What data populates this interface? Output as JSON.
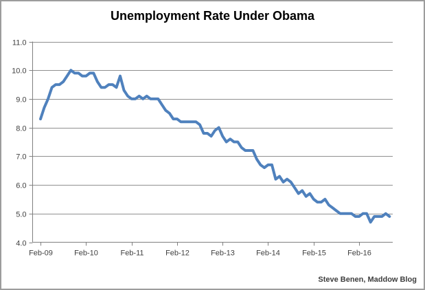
{
  "header": {
    "title": "Unemployment Rate Under Obama"
  },
  "footer": {
    "attribution": "Steve Benen, Maddow Blog"
  },
  "colors": {
    "line": "#4f81bd",
    "gridline": "#8f8f8f",
    "axis": "#7f7f7f",
    "tick_label": "#3f3f3f",
    "title": "#000000",
    "background": "#ffffff",
    "frame_border": "#9c9c9c"
  },
  "chart_data": {
    "type": "line",
    "title": "Unemployment Rate Under Obama",
    "xlabel": "",
    "ylabel": "",
    "frequency": "monthly",
    "x_start": "Feb-09",
    "x_end": "Oct-16",
    "ylim": [
      4.0,
      11.0
    ],
    "y_step": 1.0,
    "grid": "horizontal-only",
    "legend": "none",
    "y_tick_labels": [
      "11.0",
      "10.0",
      "9.0",
      "8.0",
      "7.0",
      "6.0",
      "5.0",
      "4.0"
    ],
    "x_tick_labels": [
      "Feb-09",
      "Feb-10",
      "Feb-11",
      "Feb-12",
      "Feb-13",
      "Feb-14",
      "Feb-15",
      "Feb-16"
    ],
    "months": [
      "Feb-09",
      "Mar-09",
      "Apr-09",
      "May-09",
      "Jun-09",
      "Jul-09",
      "Aug-09",
      "Sep-09",
      "Oct-09",
      "Nov-09",
      "Dec-09",
      "Jan-10",
      "Feb-10",
      "Mar-10",
      "Apr-10",
      "May-10",
      "Jun-10",
      "Jul-10",
      "Aug-10",
      "Sep-10",
      "Oct-10",
      "Nov-10",
      "Dec-10",
      "Jan-11",
      "Feb-11",
      "Mar-11",
      "Apr-11",
      "May-11",
      "Jun-11",
      "Jul-11",
      "Aug-11",
      "Sep-11",
      "Oct-11",
      "Nov-11",
      "Dec-11",
      "Jan-12",
      "Feb-12",
      "Mar-12",
      "Apr-12",
      "May-12",
      "Jun-12",
      "Jul-12",
      "Aug-12",
      "Sep-12",
      "Oct-12",
      "Nov-12",
      "Dec-12",
      "Jan-13",
      "Feb-13",
      "Mar-13",
      "Apr-13",
      "May-13",
      "Jun-13",
      "Jul-13",
      "Aug-13",
      "Sep-13",
      "Oct-13",
      "Nov-13",
      "Dec-13",
      "Jan-14",
      "Feb-14",
      "Mar-14",
      "Apr-14",
      "May-14",
      "Jun-14",
      "Jul-14",
      "Aug-14",
      "Sep-14",
      "Oct-14",
      "Nov-14",
      "Dec-14",
      "Jan-15",
      "Feb-15",
      "Mar-15",
      "Apr-15",
      "May-15",
      "Jun-15",
      "Jul-15",
      "Aug-15",
      "Sep-15",
      "Oct-15",
      "Nov-15",
      "Dec-15",
      "Jan-16",
      "Feb-16",
      "Mar-16",
      "Apr-16",
      "May-16",
      "Jun-16",
      "Jul-16",
      "Aug-16",
      "Sep-16",
      "Oct-16"
    ],
    "values": [
      8.3,
      8.7,
      9.0,
      9.4,
      9.5,
      9.5,
      9.6,
      9.8,
      10.0,
      9.9,
      9.9,
      9.8,
      9.8,
      9.9,
      9.9,
      9.6,
      9.4,
      9.4,
      9.5,
      9.5,
      9.4,
      9.8,
      9.3,
      9.1,
      9.0,
      9.0,
      9.1,
      9.0,
      9.1,
      9.0,
      9.0,
      9.0,
      8.8,
      8.6,
      8.5,
      8.3,
      8.3,
      8.2,
      8.2,
      8.2,
      8.2,
      8.2,
      8.1,
      7.8,
      7.8,
      7.7,
      7.9,
      8.0,
      7.7,
      7.5,
      7.6,
      7.5,
      7.5,
      7.3,
      7.2,
      7.2,
      7.2,
      6.9,
      6.7,
      6.6,
      6.7,
      6.7,
      6.2,
      6.3,
      6.1,
      6.2,
      6.1,
      5.9,
      5.7,
      5.8,
      5.6,
      5.7,
      5.5,
      5.4,
      5.4,
      5.5,
      5.3,
      5.2,
      5.1,
      5.0,
      5.0,
      5.0,
      5.0,
      4.9,
      4.9,
      5.0,
      5.0,
      4.7,
      4.9,
      4.9,
      4.9,
      5.0,
      4.9
    ],
    "series_color": "#4f81bd",
    "attribution": "Steve Benen, Maddow Blog"
  }
}
